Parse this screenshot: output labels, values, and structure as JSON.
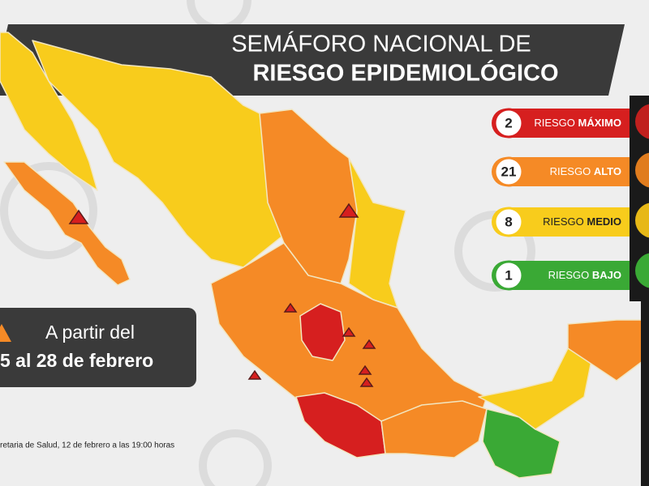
{
  "title": {
    "line1": "SEMÁFORO NACIONAL DE",
    "line2": "RIESGO EPIDEMIOLÓGICO"
  },
  "legend": [
    {
      "count": 2,
      "label": "RIESGO",
      "level": "MÁXIMO"
    },
    {
      "count": 21,
      "label": "RIESGO",
      "level": "ALTO"
    },
    {
      "count": 8,
      "label": "RIESGO",
      "level": "MEDIO"
    },
    {
      "count": 1,
      "label": "RIESGO",
      "level": "BAJO"
    }
  ],
  "period": {
    "line1": "A partir del",
    "line2": "5 al 28 de febrero"
  },
  "source": "retaria de Salud, 12 de febrero a las 19:00 horas"
}
